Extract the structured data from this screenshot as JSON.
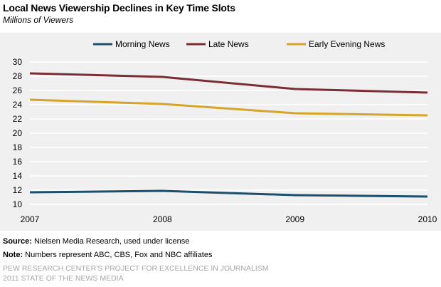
{
  "header": {
    "title": "Local News Viewership Declines in Key Time Slots",
    "subtitle": "Millions of Viewers"
  },
  "chart_data": {
    "type": "line",
    "title": "Local News Viewership Declines in Key Time Slots",
    "subtitle": "Millions of Viewers",
    "x": [
      "2007",
      "2008",
      "2009",
      "2010"
    ],
    "ylim": [
      10,
      30
    ],
    "yticks": [
      10,
      12,
      14,
      16,
      18,
      20,
      22,
      24,
      26,
      28,
      30
    ],
    "ytick_labels": [
      "10",
      "12",
      "14",
      "16",
      "18",
      "20",
      "22",
      "24",
      "26",
      "28",
      "30"
    ],
    "grid": true,
    "legend_position": "top",
    "series": [
      {
        "name": "Morning News",
        "color": "#1b4f6b",
        "values": [
          11.7,
          11.9,
          11.3,
          11.1
        ]
      },
      {
        "name": "Late News",
        "color": "#7b2d35",
        "values": [
          28.4,
          27.9,
          26.2,
          25.7
        ]
      },
      {
        "name": "Early Evening News",
        "color": "#d4a52a",
        "values": [
          24.7,
          24.1,
          22.8,
          22.5
        ]
      }
    ]
  },
  "footer": {
    "source_label": "Source:",
    "source_text": "Nielsen Media Research, used under license",
    "note_label": "Note:",
    "note_text": "Numbers represent ABC, CBS, Fox and NBC affiliates",
    "brand_line1": "PEW RESEARCH CENTER'S PROJECT FOR EXCELLENCE IN JOURNALISM",
    "brand_line2": "2011 STATE OF THE NEWS MEDIA"
  }
}
